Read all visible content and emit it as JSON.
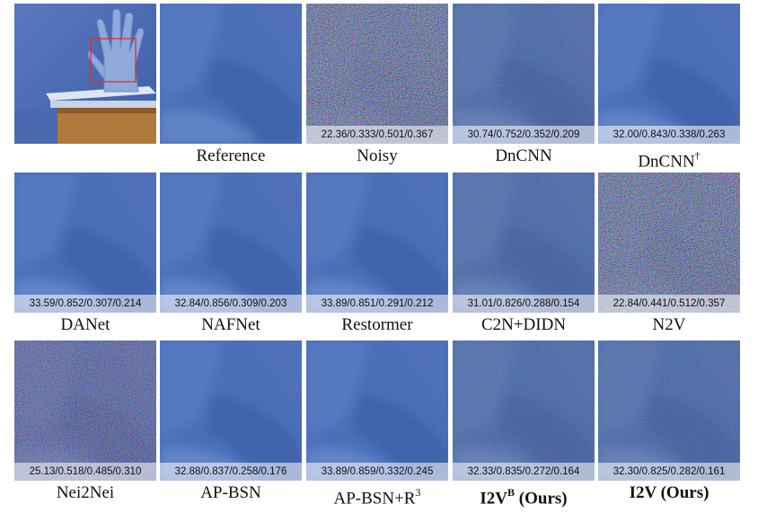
{
  "panels": [
    {
      "id": "scene",
      "caption": "",
      "metrics": "",
      "style": "scene"
    },
    {
      "id": "reference",
      "caption": "Reference",
      "metrics": "",
      "style": "clean"
    },
    {
      "id": "noisy",
      "caption": "Noisy",
      "metrics": "22.36/0.333/0.501/0.367",
      "style": "noisy-heavy"
    },
    {
      "id": "dncnn",
      "caption": "DnCNN",
      "metrics": "30.74/0.752/0.352/0.209",
      "style": "light-noise"
    },
    {
      "id": "dncnn-dagger",
      "caption": "DnCNN",
      "caption_sup": "†",
      "metrics": "32.00/0.843/0.338/0.263",
      "style": "smooth"
    },
    {
      "id": "danet",
      "caption": "DANet",
      "metrics": "33.59/0.852/0.307/0.214",
      "style": "smooth"
    },
    {
      "id": "nafnet",
      "caption": "NAFNet",
      "metrics": "32.84/0.856/0.309/0.203",
      "style": "smooth"
    },
    {
      "id": "restormer",
      "caption": "Restormer",
      "metrics": "33.89/0.851/0.291/0.212",
      "style": "smooth"
    },
    {
      "id": "c2n-didn",
      "caption": "C2N+DIDN",
      "metrics": "31.01/0.826/0.288/0.154",
      "style": "light-noise"
    },
    {
      "id": "n2v",
      "caption": "N2V",
      "metrics": "22.84/0.441/0.512/0.357",
      "style": "noisy-heavy"
    },
    {
      "id": "nei2nei",
      "caption": "Nei2Nei",
      "metrics": "25.13/0.518/0.485/0.310",
      "style": "noisy-medium"
    },
    {
      "id": "ap-bsn",
      "caption": "AP-BSN",
      "metrics": "32.88/0.837/0.258/0.176",
      "style": "smooth"
    },
    {
      "id": "ap-bsn-r3",
      "caption": "AP-BSN+R",
      "caption_sup": "3",
      "metrics": "33.89/0.859/0.332/0.245",
      "style": "smooth"
    },
    {
      "id": "i2v-b",
      "caption": "I2V",
      "caption_sup": "B",
      "caption_suffix": " (Ours)",
      "bold": true,
      "metrics": "32.33/0.835/0.272/0.164",
      "style": "light-noise"
    },
    {
      "id": "i2v",
      "caption": "I2V (Ours)",
      "bold": true,
      "metrics": "32.30/0.825/0.282/0.161",
      "style": "light-noise"
    }
  ],
  "colors": {
    "background_blue": "#4a6fb8",
    "dark_blue": "#3d5ea6",
    "glove": "#8fa9da",
    "box_wood": "#b07a3a",
    "highlight_box": "#e0302a"
  }
}
